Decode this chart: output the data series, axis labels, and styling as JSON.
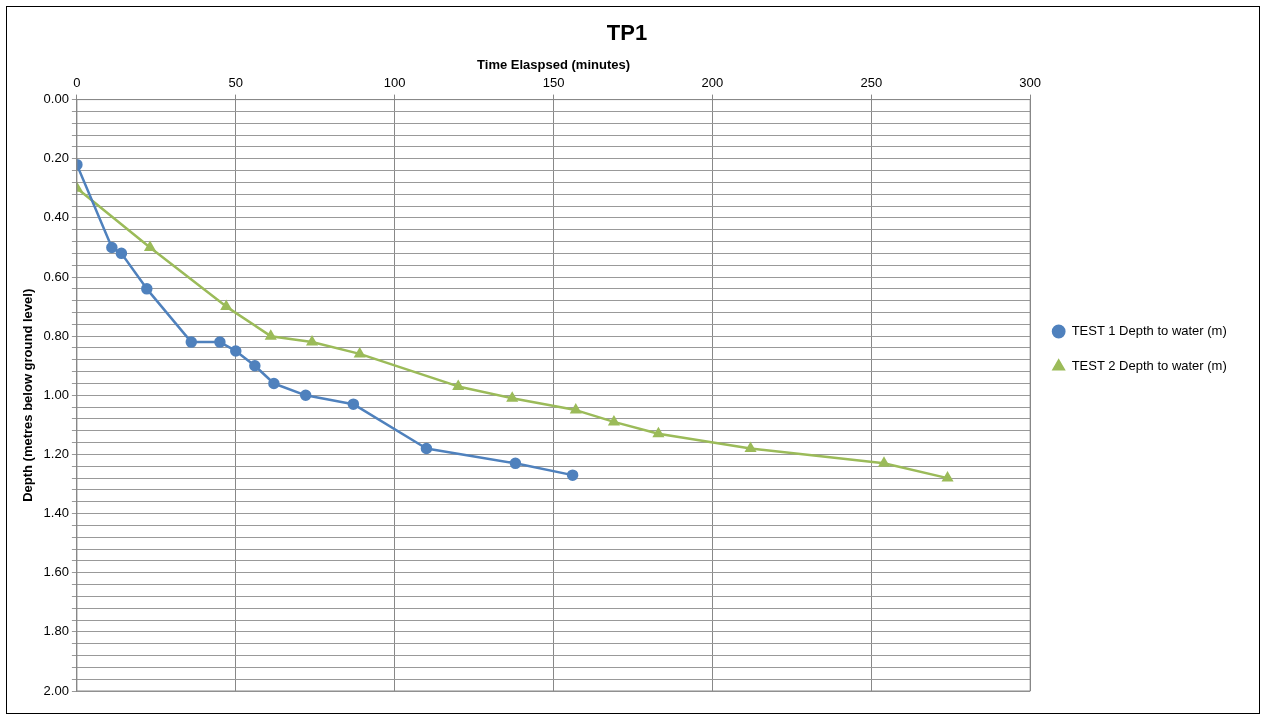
{
  "chart_data": {
    "type": "line",
    "title": "TP1",
    "xlabel": "Time Elaspsed (minutes)",
    "ylabel": "Depth (metres below ground level)",
    "xlim": [
      0,
      300
    ],
    "xticks": [
      0,
      50,
      100,
      150,
      200,
      250,
      300
    ],
    "ylim": [
      2,
      0
    ],
    "yticks": [
      {
        "value": 0,
        "label": "0.00"
      },
      {
        "value": 0.04,
        "label": null
      },
      {
        "value": 0.08,
        "label": null
      },
      {
        "value": 0.12,
        "label": null
      },
      {
        "value": 0.16,
        "label": null
      },
      {
        "value": 0.2,
        "label": "0.20"
      },
      {
        "value": 0.24,
        "label": null
      },
      {
        "value": 0.28,
        "label": null
      },
      {
        "value": 0.32,
        "label": null
      },
      {
        "value": 0.36,
        "label": null
      },
      {
        "value": 0.4,
        "label": "0.40"
      },
      {
        "value": 0.44,
        "label": null
      },
      {
        "value": 0.48,
        "label": null
      },
      {
        "value": 0.52,
        "label": null
      },
      {
        "value": 0.56,
        "label": null
      },
      {
        "value": 0.6,
        "label": "0.60"
      },
      {
        "value": 0.64,
        "label": null
      },
      {
        "value": 0.68,
        "label": null
      },
      {
        "value": 0.72,
        "label": null
      },
      {
        "value": 0.76,
        "label": null
      },
      {
        "value": 0.8,
        "label": "0.80"
      },
      {
        "value": 0.84,
        "label": null
      },
      {
        "value": 0.88,
        "label": null
      },
      {
        "value": 0.92,
        "label": null
      },
      {
        "value": 0.96,
        "label": null
      },
      {
        "value": 1,
        "label": "1.00"
      },
      {
        "value": 1.04,
        "label": null
      },
      {
        "value": 1.08,
        "label": null
      },
      {
        "value": 1.12,
        "label": null
      },
      {
        "value": 1.16,
        "label": null
      },
      {
        "value": 1.2,
        "label": "1.20"
      },
      {
        "value": 1.24,
        "label": null
      },
      {
        "value": 1.28,
        "label": null
      },
      {
        "value": 1.32,
        "label": null
      },
      {
        "value": 1.36,
        "label": null
      },
      {
        "value": 1.4,
        "label": "1.40"
      },
      {
        "value": 1.44,
        "label": null
      },
      {
        "value": 1.48,
        "label": null
      },
      {
        "value": 1.52,
        "label": null
      },
      {
        "value": 1.56,
        "label": null
      },
      {
        "value": 1.6,
        "label": "1.60"
      },
      {
        "value": 1.64,
        "label": null
      },
      {
        "value": 1.68,
        "label": null
      },
      {
        "value": 1.72,
        "label": null
      },
      {
        "value": 1.76,
        "label": null
      },
      {
        "value": 1.8,
        "label": "1.80"
      },
      {
        "value": 1.84,
        "label": null
      },
      {
        "value": 1.88,
        "label": null
      },
      {
        "value": 1.92,
        "label": null
      },
      {
        "value": 1.96,
        "label": null
      },
      {
        "value": 2,
        "label": "2.00"
      }
    ],
    "grid": true,
    "legend": "right",
    "line_style": "solid",
    "series": [
      {
        "name": "TEST 1 Depth to water (m)",
        "color": "#4f81bd",
        "marker": "circle",
        "x": [
          0,
          11,
          14,
          22,
          36,
          45,
          50,
          56,
          62,
          72,
          87,
          110,
          138,
          156
        ],
        "values": [
          0.22,
          0.5,
          0.52,
          0.64,
          0.82,
          0.82,
          0.85,
          0.9,
          0.96,
          1.0,
          1.03,
          1.18,
          1.23,
          1.27
        ]
      },
      {
        "name": "TEST 2 Depth to water (m)",
        "color": "#9bbb59",
        "marker": "triangle",
        "x": [
          0,
          23,
          47,
          61,
          74,
          89,
          120,
          137,
          157,
          169,
          183,
          212,
          254,
          274
        ],
        "values": [
          0.3,
          0.5,
          0.7,
          0.8,
          0.82,
          0.86,
          0.97,
          1.01,
          1.05,
          1.09,
          1.13,
          1.18,
          1.23,
          1.28
        ]
      }
    ]
  }
}
